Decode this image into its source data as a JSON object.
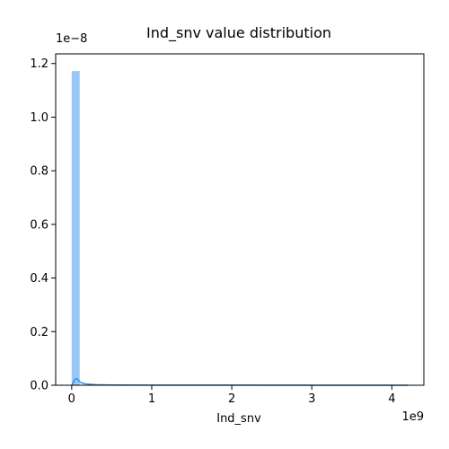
{
  "chart_data": {
    "type": "bar",
    "title": "Ind_snv value distribution",
    "xlabel": "Ind_snv",
    "ylabel": "",
    "x_offset_text": "1e9",
    "y_offset_text": "1e−8",
    "xlim": [
      -0.2,
      4.4
    ],
    "ylim": [
      0,
      1.236
    ],
    "xticks": [
      0,
      1,
      2,
      3,
      4
    ],
    "yticks": [
      0.0,
      0.2,
      0.4,
      0.6,
      0.8,
      1.0,
      1.2
    ],
    "bar_color": "#98c8f4",
    "kde_color": "#3a8ee6",
    "series": [
      {
        "kind": "histogram",
        "bin_edges_e9": [
          0.0,
          0.1
        ],
        "values_e8": [
          1.172
        ]
      },
      {
        "kind": "kde",
        "x_e9": [
          0.0,
          0.02,
          0.04,
          0.06,
          0.08,
          0.1,
          0.14,
          0.2,
          0.3,
          0.5,
          1.0,
          2.0,
          3.0,
          4.0,
          4.2
        ],
        "y_e8": [
          0.0,
          0.01,
          0.022,
          0.025,
          0.02,
          0.013,
          0.007,
          0.004,
          0.002,
          0.001,
          0.0005,
          0.0003,
          0.0002,
          0.0002,
          0.0002
        ]
      }
    ]
  }
}
